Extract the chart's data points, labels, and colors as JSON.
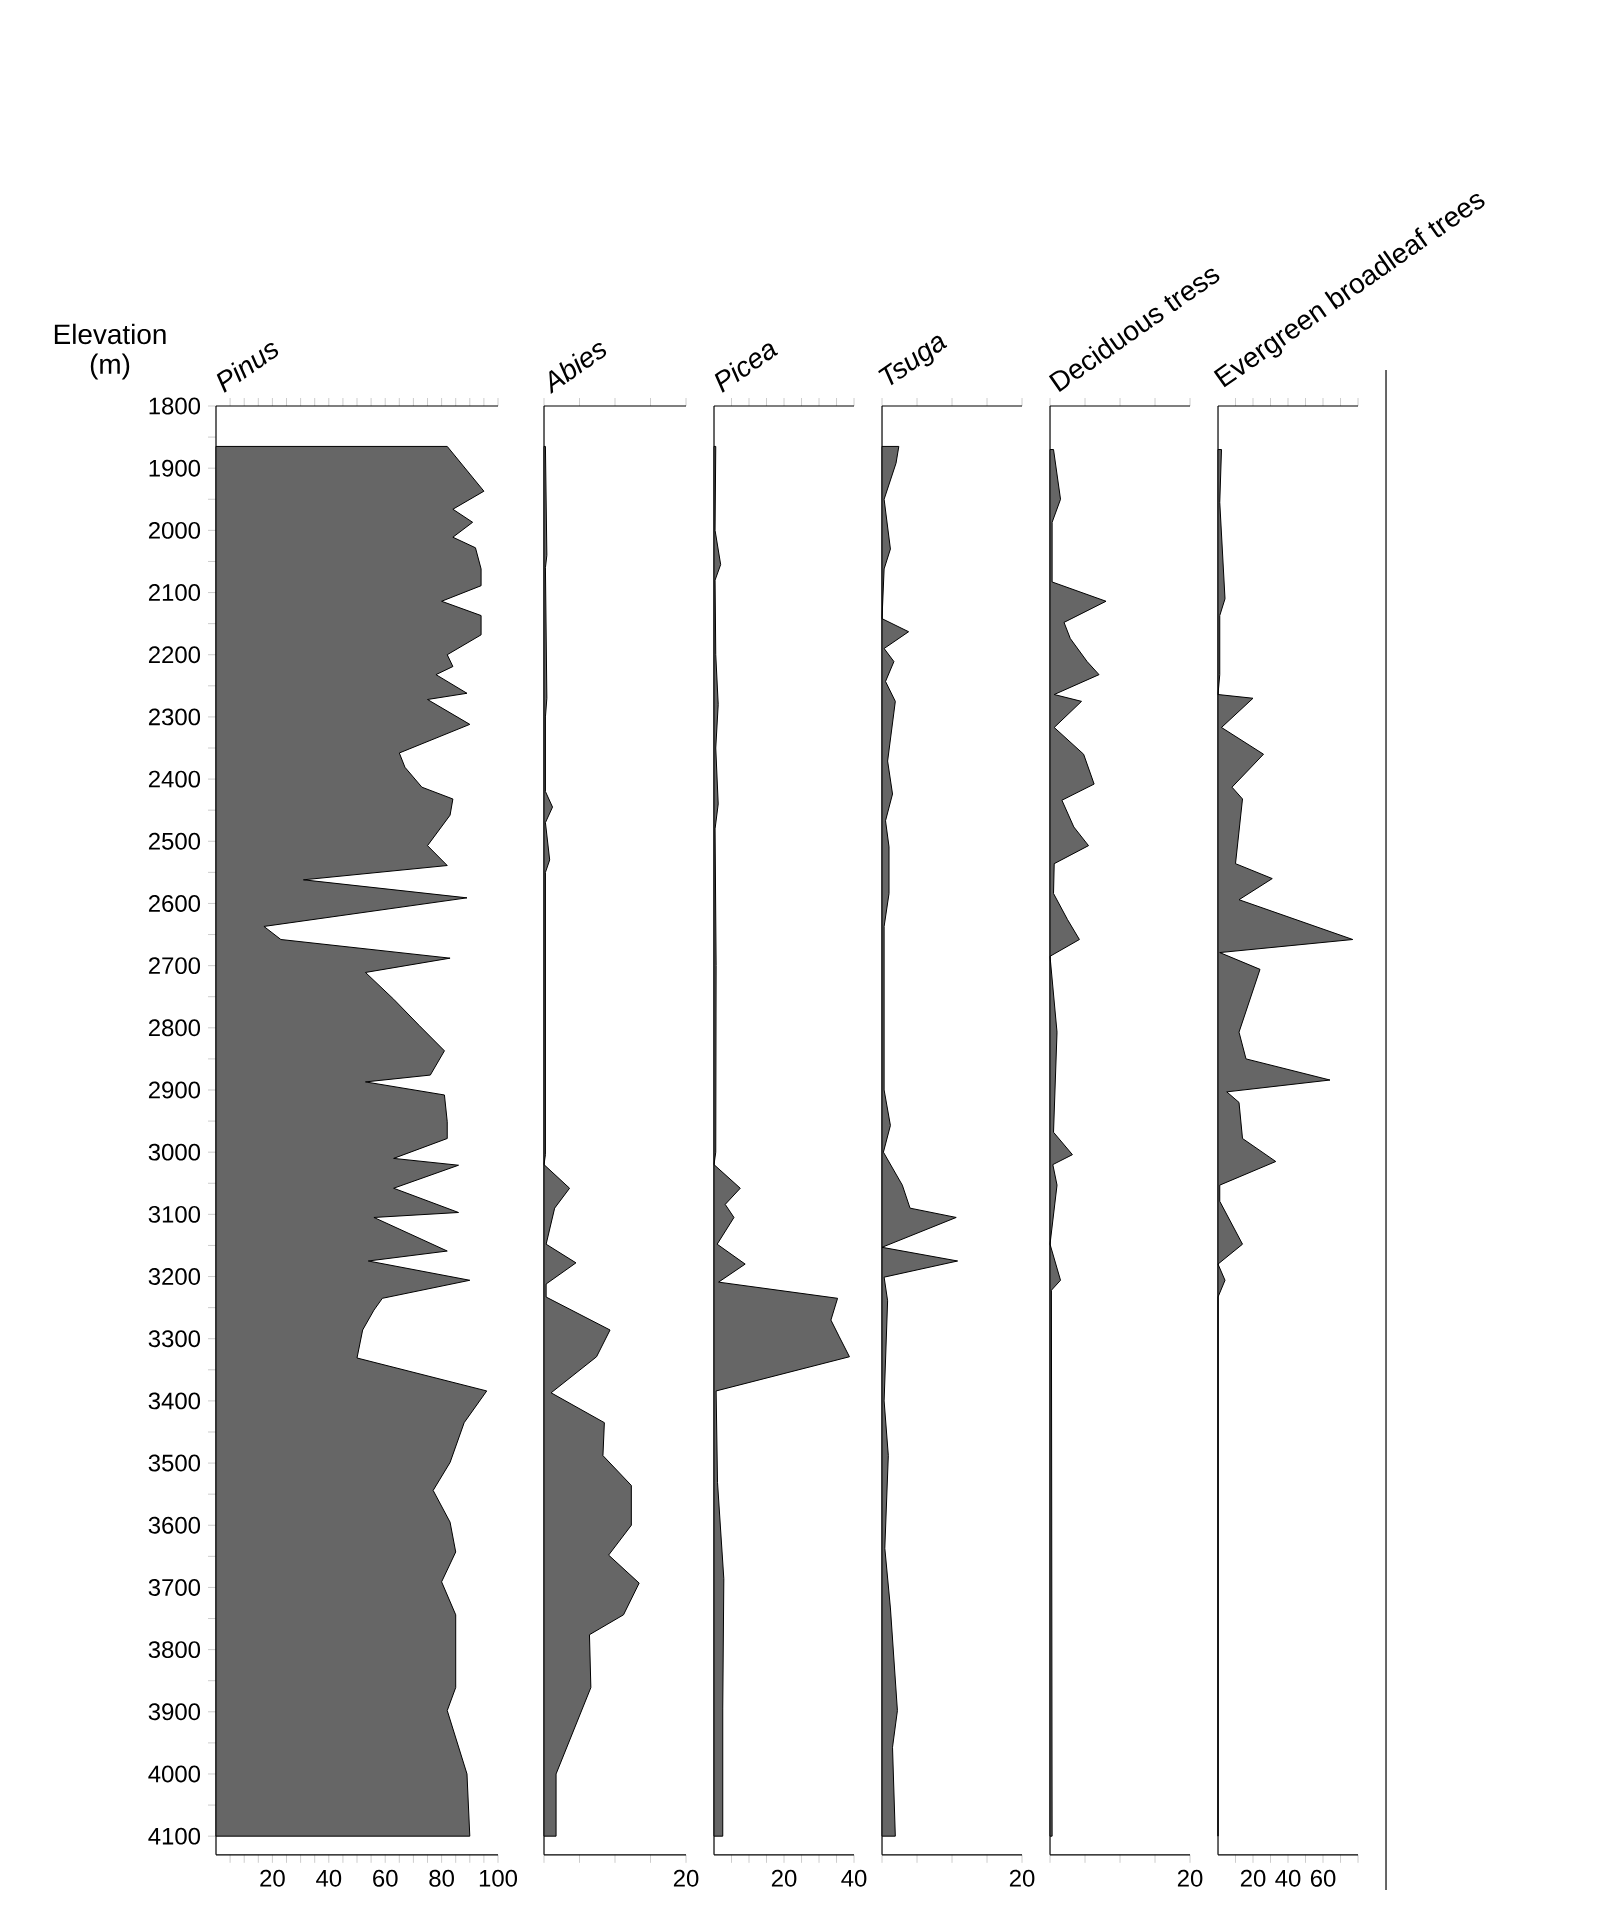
{
  "chart_data": [
    {
      "type": "area",
      "orientation": "horizontal",
      "title": "Pinus",
      "ylabel": "Elevation (m)",
      "color": "#666666",
      "x": [
        1865,
        1937,
        1966,
        1987,
        2011,
        2028,
        2062,
        2089,
        2114,
        2137,
        2168,
        2200,
        2219,
        2232,
        2262,
        2272,
        2312,
        2358,
        2381,
        2413,
        2432,
        2458,
        2507,
        2539,
        2562,
        2591,
        2637,
        2658,
        2688,
        2711,
        2754,
        2796,
        2837,
        2876,
        2887,
        2908,
        2951,
        2978,
        3010,
        3021,
        3058,
        3097,
        3105,
        3159,
        3175,
        3206,
        3235,
        3254,
        3286,
        3331,
        3384,
        3435,
        3499,
        3544,
        3595,
        3643,
        3691,
        3744,
        3797,
        3861,
        3898,
        4000,
        4100
      ],
      "values": [
        82,
        95,
        84,
        91,
        84,
        92,
        94,
        94,
        80,
        94,
        94,
        82,
        84,
        78,
        89,
        75,
        90,
        65,
        67,
        73,
        84,
        83,
        75,
        82,
        31,
        89,
        17,
        23,
        83,
        53,
        63,
        72,
        81,
        76,
        53,
        81,
        82,
        82,
        63,
        86,
        63,
        86,
        56,
        82,
        54,
        90,
        59,
        56,
        52,
        50,
        96,
        88,
        83,
        77,
        83,
        85,
        80,
        85,
        85,
        85,
        82,
        89,
        90
      ],
      "xlim": [
        0,
        100
      ],
      "xticks": [
        {
          "value": 5,
          "label": null
        },
        {
          "value": 10,
          "label": null
        },
        {
          "value": 15,
          "label": null
        },
        20,
        {
          "value": 25,
          "label": null
        },
        {
          "value": 30,
          "label": null
        },
        {
          "value": 35,
          "label": null
        },
        40,
        {
          "value": 45,
          "label": null
        },
        {
          "value": 50,
          "label": null
        },
        {
          "value": 55,
          "label": null
        },
        60,
        {
          "value": 65,
          "label": null
        },
        {
          "value": 70,
          "label": null
        },
        {
          "value": 75,
          "label": null
        },
        80,
        {
          "value": 85,
          "label": null
        },
        {
          "value": 90,
          "label": null
        },
        {
          "value": 95,
          "label": null
        },
        100
      ],
      "ylim": [
        4130,
        1800
      ],
      "yticks": [
        1800,
        {
          "value": 1850,
          "label": null
        },
        1900,
        {
          "value": 1950,
          "label": null
        },
        2000,
        {
          "value": 2050,
          "label": null
        },
        2100,
        {
          "value": 2150,
          "label": null
        },
        2200,
        {
          "value": 2250,
          "label": null
        },
        2300,
        {
          "value": 2350,
          "label": null
        },
        2400,
        {
          "value": 2450,
          "label": null
        },
        2500,
        {
          "value": 2550,
          "label": null
        },
        2600,
        {
          "value": 2650,
          "label": null
        },
        2700,
        {
          "value": 2750,
          "label": null
        },
        2800,
        {
          "value": 2850,
          "label": null
        },
        2900,
        {
          "value": 2950,
          "label": null
        },
        3000,
        {
          "value": 3050,
          "label": null
        },
        3100,
        {
          "value": 3150,
          "label": null
        },
        3200,
        {
          "value": 3250,
          "label": null
        },
        3300,
        {
          "value": 3350,
          "label": null
        },
        3400,
        {
          "value": 3450,
          "label": null
        },
        3500,
        {
          "value": 3550,
          "label": null
        },
        3600,
        {
          "value": 3650,
          "label": null
        },
        3700,
        {
          "value": 3750,
          "label": null
        },
        3800,
        {
          "value": 3850,
          "label": null
        },
        3900,
        {
          "value": 3950,
          "label": null
        },
        4000,
        {
          "value": 4050,
          "label": null
        },
        4100
      ]
    },
    {
      "type": "area",
      "orientation": "horizontal",
      "title": "Abies",
      "color": "#666666",
      "tick_labels": "x",
      "x": [
        1865,
        2040,
        2060,
        2270,
        2300,
        2420,
        2445,
        2470,
        2530,
        2550,
        3004,
        3020,
        3058,
        3090,
        3148,
        3178,
        3212,
        3233,
        3286,
        3329,
        3387,
        3435,
        3488,
        3536,
        3600,
        3648,
        3693,
        3744,
        3776,
        3861,
        4000,
        4100
      ],
      "values": [
        0.2,
        0.4,
        0.2,
        0.4,
        0.2,
        0.2,
        1.2,
        0.2,
        0.8,
        0.2,
        0.2,
        0,
        3.6,
        1.5,
        0.3,
        4.5,
        0.3,
        0.3,
        9.3,
        7.4,
        1,
        8.5,
        8.3,
        12.3,
        12.3,
        9.1,
        13.4,
        11.2,
        6.4,
        6.6,
        1.7,
        1.7
      ],
      "xlim": [
        0,
        20
      ],
      "xticks": [
        {
          "value": 0,
          "label": null
        },
        {
          "value": 5,
          "label": null
        },
        {
          "value": 10,
          "label": null
        },
        {
          "value": 15,
          "label": null
        },
        20
      ],
      "ylim": [
        4130,
        1800
      ]
    },
    {
      "type": "area",
      "orientation": "horizontal",
      "title": "Picea",
      "color": "#666666",
      "tick_labels": "x",
      "x": [
        1865,
        2000,
        2055,
        2080,
        2200,
        2280,
        2350,
        2440,
        2480,
        2700,
        3000,
        3020,
        3058,
        3084,
        3105,
        3148,
        3180,
        3209,
        3235,
        3270,
        3297,
        3329,
        3384,
        3531,
        3686,
        3894,
        4100
      ],
      "values": [
        0.5,
        0.3,
        1.9,
        0.3,
        0.5,
        1.2,
        0.5,
        1.2,
        0.3,
        0.6,
        0.5,
        0,
        7.5,
        3.2,
        5.7,
        0.9,
        8.9,
        1.3,
        35.3,
        33.4,
        35.8,
        38.7,
        0.6,
        1,
        2.8,
        2.5,
        2.5
      ],
      "xlim": [
        0,
        40
      ],
      "xticks": [
        {
          "value": 5,
          "label": null
        },
        {
          "value": 10,
          "label": null
        },
        {
          "value": 15,
          "label": null
        },
        20,
        {
          "value": 25,
          "label": null
        },
        {
          "value": 30,
          "label": null
        },
        {
          "value": 35,
          "label": null
        },
        40
      ],
      "ylim": [
        4130,
        1800
      ]
    },
    {
      "type": "area",
      "orientation": "horizontal",
      "title": "Tsuga",
      "color": "#666666",
      "tick_labels": "x",
      "x": [
        1865,
        1892,
        1950,
        2030,
        2062,
        2142,
        2163,
        2190,
        2211,
        2243,
        2275,
        2371,
        2424,
        2467,
        2509,
        2584,
        2637,
        2900,
        2957,
        3000,
        3053,
        3090,
        3105,
        3153,
        3175,
        3201,
        3239,
        3400,
        3488,
        3637,
        3733,
        3898,
        3957,
        4100
      ],
      "values": [
        2.4,
        2,
        0.3,
        1.2,
        0.3,
        0,
        3.8,
        0.3,
        1.7,
        0.5,
        1.9,
        0.8,
        1.5,
        0.5,
        1,
        1,
        0.3,
        0.3,
        1.2,
        0.2,
        2.9,
        4,
        10.6,
        0,
        10.8,
        0.3,
        0.8,
        0.3,
        0.9,
        0.4,
        1.2,
        2.2,
        1.5,
        1.9
      ],
      "xlim": [
        0,
        20
      ],
      "xticks": [
        {
          "value": 0,
          "label": null
        },
        {
          "value": 5,
          "label": null
        },
        {
          "value": 10,
          "label": null
        },
        {
          "value": 15,
          "label": null
        },
        20
      ],
      "ylim": [
        4130,
        1800
      ]
    },
    {
      "type": "area",
      "orientation": "horizontal",
      "title": "Deciduous tress",
      "color": "#666666",
      "tick_labels": "x",
      "x": [
        1870,
        1950,
        1987,
        2083,
        2114,
        2148,
        2174,
        2211,
        2232,
        2264,
        2275,
        2317,
        2360,
        2408,
        2434,
        2477,
        2507,
        2536,
        2584,
        2626,
        2658,
        2685,
        2807,
        2968,
        3004,
        3020,
        3053,
        3148,
        3206,
        3222,
        4100
      ],
      "values": [
        0.5,
        1.5,
        0.3,
        0.3,
        8,
        2,
        2.9,
        5.3,
        7,
        0.6,
        4.5,
        0.6,
        4.8,
        6.3,
        1.7,
        3.4,
        5.5,
        0.6,
        0.5,
        2.5,
        4.2,
        0,
        1,
        0.5,
        3.2,
        0.4,
        1,
        0,
        1.5,
        0.2,
        0.3
      ],
      "xlim": [
        0,
        20
      ],
      "xticks": [
        {
          "value": 0,
          "label": null
        },
        {
          "value": 5,
          "label": null
        },
        {
          "value": 10,
          "label": null
        },
        {
          "value": 15,
          "label": null
        },
        20
      ],
      "ylim": [
        4130,
        1800
      ]
    },
    {
      "type": "area",
      "orientation": "horizontal",
      "title": "Evergreen broadleaf trees",
      "color": "#666666",
      "tick_labels": "x",
      "x": [
        1870,
        1955,
        2110,
        2137,
        2232,
        2264,
        2270,
        2317,
        2360,
        2413,
        2432,
        2536,
        2560,
        2594,
        2658,
        2679,
        2706,
        2807,
        2850,
        2884,
        2903,
        2920,
        2978,
        3015,
        3053,
        3079,
        3148,
        3180,
        3206,
        3233,
        4100
      ],
      "values": [
        2,
        1,
        4,
        1,
        1,
        0,
        20,
        2,
        26,
        8,
        14,
        10,
        31,
        12,
        77,
        1,
        24,
        12,
        16,
        64,
        5,
        12,
        14,
        33,
        1,
        1,
        14,
        0,
        4,
        0,
        0
      ],
      "xlim": [
        0,
        80
      ],
      "xticks": [
        {
          "value": 10,
          "label": null
        },
        20,
        {
          "value": 30,
          "label": null
        },
        40,
        {
          "value": 50,
          "label": null
        },
        60,
        {
          "value": 70,
          "label": null
        },
        {
          "value": 80,
          "label": null
        }
      ],
      "ylim": [
        4130,
        1800
      ]
    }
  ]
}
